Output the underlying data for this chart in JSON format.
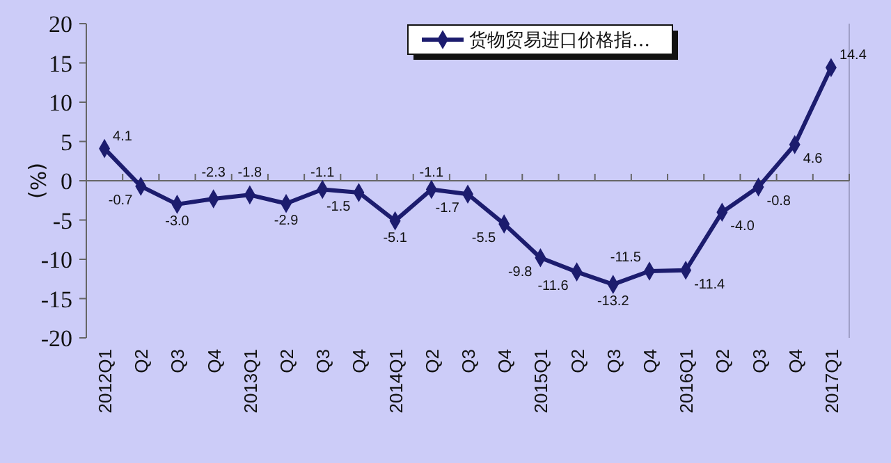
{
  "chart_data": {
    "type": "line",
    "ylabel": "(%)",
    "categories": [
      "2012Q1",
      "Q2",
      "Q3",
      "Q4",
      "2013Q1",
      "Q2",
      "Q3",
      "Q4",
      "2014Q1",
      "Q2",
      "Q3",
      "Q4",
      "2015Q1",
      "Q2",
      "Q3",
      "Q4",
      "2016Q1",
      "Q2",
      "Q3",
      "Q4",
      "2017Q1"
    ],
    "series": [
      {
        "name": "货物贸易进口价格指…",
        "color": "#1c1c6e",
        "values": [
          4.1,
          -0.7,
          -3.0,
          -2.3,
          -1.8,
          -2.9,
          -1.1,
          -1.5,
          -5.1,
          -1.1,
          -1.7,
          -5.5,
          -9.8,
          -11.6,
          -13.2,
          -11.5,
          -11.4,
          -4.0,
          -0.8,
          4.6,
          14.4
        ],
        "value_labels": [
          "4.1",
          "-0.7",
          "-3.0",
          "-2.3",
          "-1.8",
          "-2.9",
          "-1.1",
          "-1.5",
          "-5.1",
          "-1.1",
          "-1.7",
          "-5.5",
          "-9.8",
          "-11.6",
          "-13.2",
          "-11.5",
          "-11.4",
          "-4.0",
          "-0.8",
          "4.6",
          "14.4"
        ]
      }
    ],
    "ylim": [
      -20,
      20
    ],
    "yticks": [
      -20,
      -15,
      -10,
      -5,
      0,
      5,
      10,
      15,
      20
    ],
    "ref_lines": [
      {
        "axis": "y",
        "value": 0,
        "color": "#666666"
      }
    ],
    "legend": "top",
    "marker": "diamond",
    "line_style": "solid",
    "grid": false
  }
}
